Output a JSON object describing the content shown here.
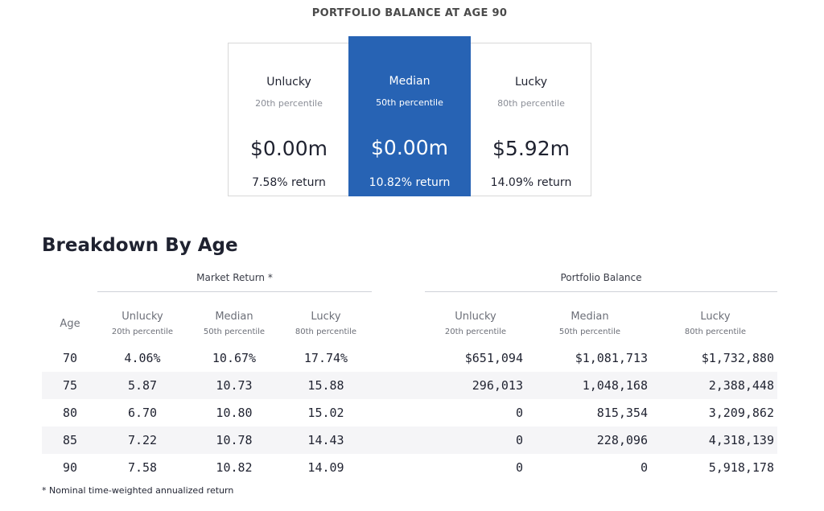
{
  "summary": {
    "title": "PORTFOLIO BALANCE AT AGE 90",
    "scenarios": [
      {
        "name": "Unlucky",
        "percentile": "20th percentile",
        "balance": "$0.00m",
        "return": "7.58% return"
      },
      {
        "name": "Median",
        "percentile": "50th percentile",
        "balance": "$0.00m",
        "return": "10.82% return"
      },
      {
        "name": "Lucky",
        "percentile": "80th percentile",
        "balance": "$5.92m",
        "return": "14.09% return"
      }
    ],
    "highlight_color": "#2763b4"
  },
  "breakdown": {
    "title": "Breakdown By Age",
    "age_header": "Age",
    "market_return_label": "Market Return *",
    "portfolio_balance_label": "Portfolio Balance",
    "columns": [
      {
        "name": "Unlucky",
        "percentile": "20th percentile"
      },
      {
        "name": "Median",
        "percentile": "50th percentile"
      },
      {
        "name": "Lucky",
        "percentile": "80th percentile"
      }
    ],
    "rows": [
      {
        "age": "70",
        "ret_unlucky": "4.06%",
        "ret_median": "10.67%",
        "ret_lucky": "17.74%",
        "bal_unlucky": "$651,094",
        "bal_median": "$1,081,713",
        "bal_lucky": "$1,732,880"
      },
      {
        "age": "75",
        "ret_unlucky": "5.87",
        "ret_median": "10.73",
        "ret_lucky": "15.88",
        "bal_unlucky": "296,013",
        "bal_median": "1,048,168",
        "bal_lucky": "2,388,448"
      },
      {
        "age": "80",
        "ret_unlucky": "6.70",
        "ret_median": "10.80",
        "ret_lucky": "15.02",
        "bal_unlucky": "0",
        "bal_median": "815,354",
        "bal_lucky": "3,209,862"
      },
      {
        "age": "85",
        "ret_unlucky": "7.22",
        "ret_median": "10.78",
        "ret_lucky": "14.43",
        "bal_unlucky": "0",
        "bal_median": "228,096",
        "bal_lucky": "4,318,139"
      },
      {
        "age": "90",
        "ret_unlucky": "7.58",
        "ret_median": "10.82",
        "ret_lucky": "14.09",
        "bal_unlucky": "0",
        "bal_median": "0",
        "bal_lucky": "5,918,178"
      }
    ],
    "footnote": "* Nominal time-weighted annualized return"
  }
}
